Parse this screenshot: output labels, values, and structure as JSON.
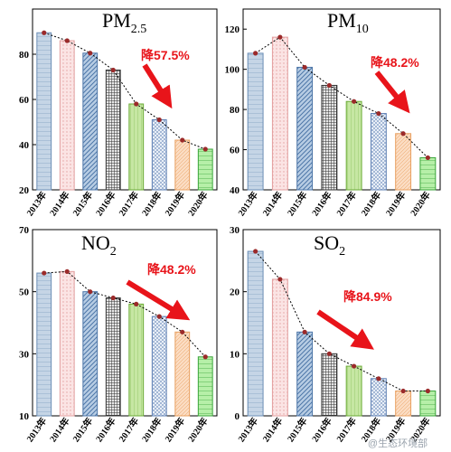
{
  "colors": {
    "bar_fills": [
      "#c5d5e6",
      "#fbe4e4",
      "#b8cde4",
      "#9a9a9a",
      "#c6e7a3",
      "#bccde3",
      "#fbdcc2",
      "#b6efa8"
    ],
    "bar_edges": [
      "#6a8db5",
      "#e3a0a0",
      "#4d76a8",
      "#333333",
      "#6aaa35",
      "#5d7fb3",
      "#e8a060",
      "#3aa53a"
    ],
    "marker": "#9b2a2a",
    "arrow": "#e8141a",
    "trend_line": "#000000"
  },
  "watermark": "@生态环境部",
  "chart_data": [
    {
      "type": "bar",
      "title_main": "PM",
      "title_sub": "2.5",
      "categories": [
        "2013年",
        "2014年",
        "2015年",
        "2016年",
        "2017年",
        "2018年",
        "2019年",
        "2020年"
      ],
      "values": [
        89.5,
        86,
        80.5,
        73,
        58,
        51,
        42,
        38
      ],
      "ylim": [
        20,
        100
      ],
      "yticks": [
        "20",
        "40",
        "60",
        "80"
      ],
      "reduction_label": "降57.5%",
      "grid": false
    },
    {
      "type": "bar",
      "title_main": "PM",
      "title_sub": "10",
      "categories": [
        "2013年",
        "2014年",
        "2015年",
        "2016年",
        "2017年",
        "2018年",
        "2019年",
        "2020年"
      ],
      "values": [
        108,
        116,
        101,
        92,
        84,
        78,
        68,
        56
      ],
      "ylim": [
        40,
        130
      ],
      "yticks": [
        "40",
        "60",
        "80",
        "100",
        "120"
      ],
      "reduction_label": "降48.2%",
      "grid": false
    },
    {
      "type": "bar",
      "title_main": "NO",
      "title_sub": "2",
      "categories": [
        "2013年",
        "2014年",
        "2015年",
        "2016年",
        "2017年",
        "2018年",
        "2019年",
        "2020年"
      ],
      "values": [
        56,
        56.5,
        50,
        48,
        46,
        42,
        37,
        29
      ],
      "ylim": [
        10,
        70
      ],
      "yticks": [
        "10",
        "30",
        "50",
        "70"
      ],
      "reduction_label": "降48.2%",
      "grid": false
    },
    {
      "type": "bar",
      "title_main": "SO",
      "title_sub": "2",
      "categories": [
        "2013年",
        "2014年",
        "2015年",
        "2016年",
        "2017年",
        "2018年",
        "2019年",
        "2020年"
      ],
      "values": [
        26.5,
        22,
        13.5,
        10,
        8,
        6,
        4,
        4
      ],
      "ylim": [
        0,
        30
      ],
      "yticks": [
        "0",
        "10",
        "20",
        "30"
      ],
      "reduction_label": "降84.9%",
      "grid": false
    }
  ]
}
